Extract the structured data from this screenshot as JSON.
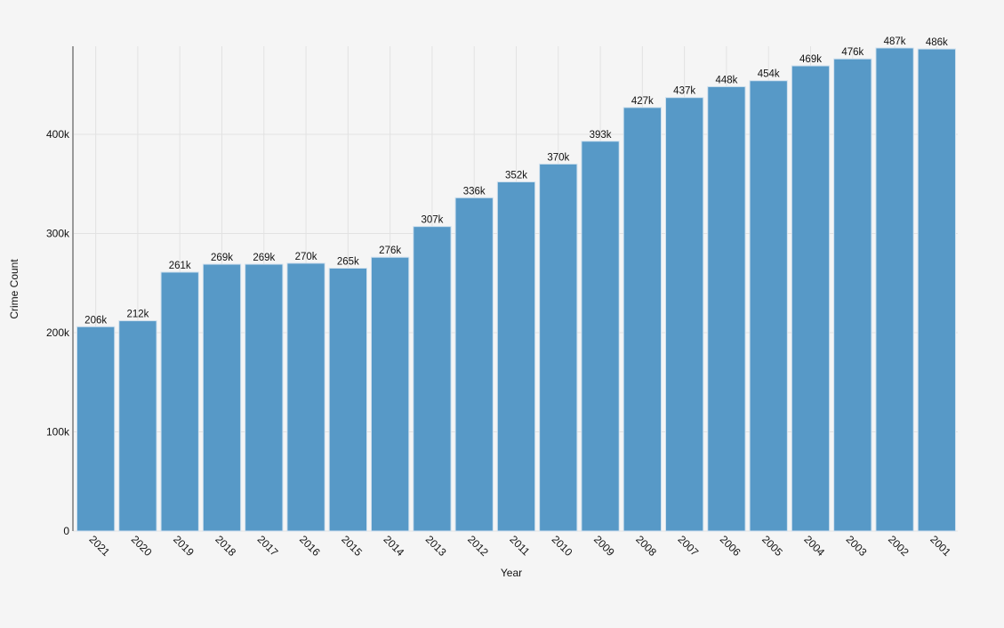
{
  "chart_data": {
    "type": "bar",
    "title": "",
    "xlabel": "Year",
    "ylabel": "Crime Count",
    "categories": [
      "2021",
      "2020",
      "2019",
      "2018",
      "2017",
      "2016",
      "2015",
      "2014",
      "2013",
      "2012",
      "2011",
      "2010",
      "2009",
      "2008",
      "2007",
      "2006",
      "2005",
      "2004",
      "2003",
      "2002",
      "2001"
    ],
    "values": [
      206000,
      212000,
      261000,
      269000,
      269000,
      270000,
      265000,
      276000,
      307000,
      336000,
      352000,
      370000,
      393000,
      427000,
      437000,
      448000,
      454000,
      469000,
      476000,
      487000,
      486000
    ],
    "data_labels": [
      "206k",
      "212k",
      "261k",
      "269k",
      "269k",
      "270k",
      "265k",
      "276k",
      "307k",
      "336k",
      "352k",
      "370k",
      "393k",
      "427k",
      "437k",
      "448k",
      "454k",
      "469k",
      "476k",
      "487k",
      "486k"
    ],
    "yticks": [
      0,
      100000,
      200000,
      300000,
      400000
    ],
    "ytick_labels": [
      "0",
      "100k",
      "200k",
      "300k",
      "400k"
    ],
    "ylim": [
      0,
      490000
    ],
    "grid": true,
    "bar_color": "#5799c7",
    "background": "#f5f5f5"
  }
}
